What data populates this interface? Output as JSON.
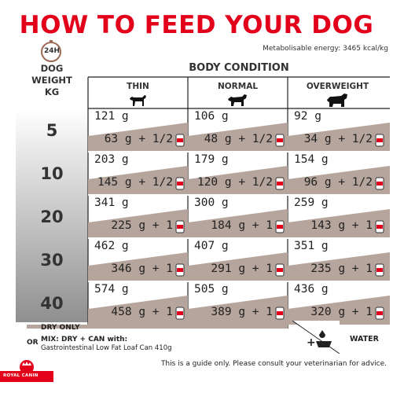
{
  "title": "HOW TO FEED YOUR DOG",
  "clock_label": "24H",
  "energy": "Metabolisable energy: 3465 kcal/kg",
  "weight_header": [
    "DOG",
    "WEIGHT",
    "KG"
  ],
  "body_condition": "BODY CONDITION",
  "columns": [
    "THIN",
    "NORMAL",
    "OVERWEIGHT"
  ],
  "rows": [
    {
      "weight": "5",
      "dry": [
        "121 g",
        "106 g",
        "92 g"
      ],
      "mix": [
        "63 g + 1/2",
        "48 g + 1/2",
        "34 g + 1/2"
      ]
    },
    {
      "weight": "10",
      "dry": [
        "203 g",
        "179 g",
        "154 g"
      ],
      "mix": [
        "145 g + 1/2",
        "120 g + 1/2",
        "96 g + 1/2"
      ]
    },
    {
      "weight": "20",
      "dry": [
        "341 g",
        "300 g",
        "259 g"
      ],
      "mix": [
        "225 g + 1",
        "184 g + 1",
        "143 g + 1"
      ]
    },
    {
      "weight": "30",
      "dry": [
        "462 g",
        "407 g",
        "351 g"
      ],
      "mix": [
        "346 g + 1",
        "291 g + 1",
        "235 g + 1"
      ]
    },
    {
      "weight": "40",
      "dry": [
        "574 g",
        "505 g",
        "436 g"
      ],
      "mix": [
        "458 g + 1",
        "389 g + 1",
        "320 g + 1"
      ]
    }
  ],
  "legend": {
    "dry_only": "DRY ONLY",
    "or": "OR",
    "mix": "MIX: DRY + CAN with:",
    "product": "Gastrointestinal Low Fat Loaf Can 410g",
    "plus": "+",
    "water": "WATER"
  },
  "note": "This is a guide only. Please consult your veterinarian for advice.",
  "brand": "ROYAL CANIN",
  "colors": {
    "title": "#e2001a",
    "band": "#b6a59c",
    "left_gradient_top": "#ffffff",
    "left_gradient_bottom": "#8a8a8a"
  }
}
